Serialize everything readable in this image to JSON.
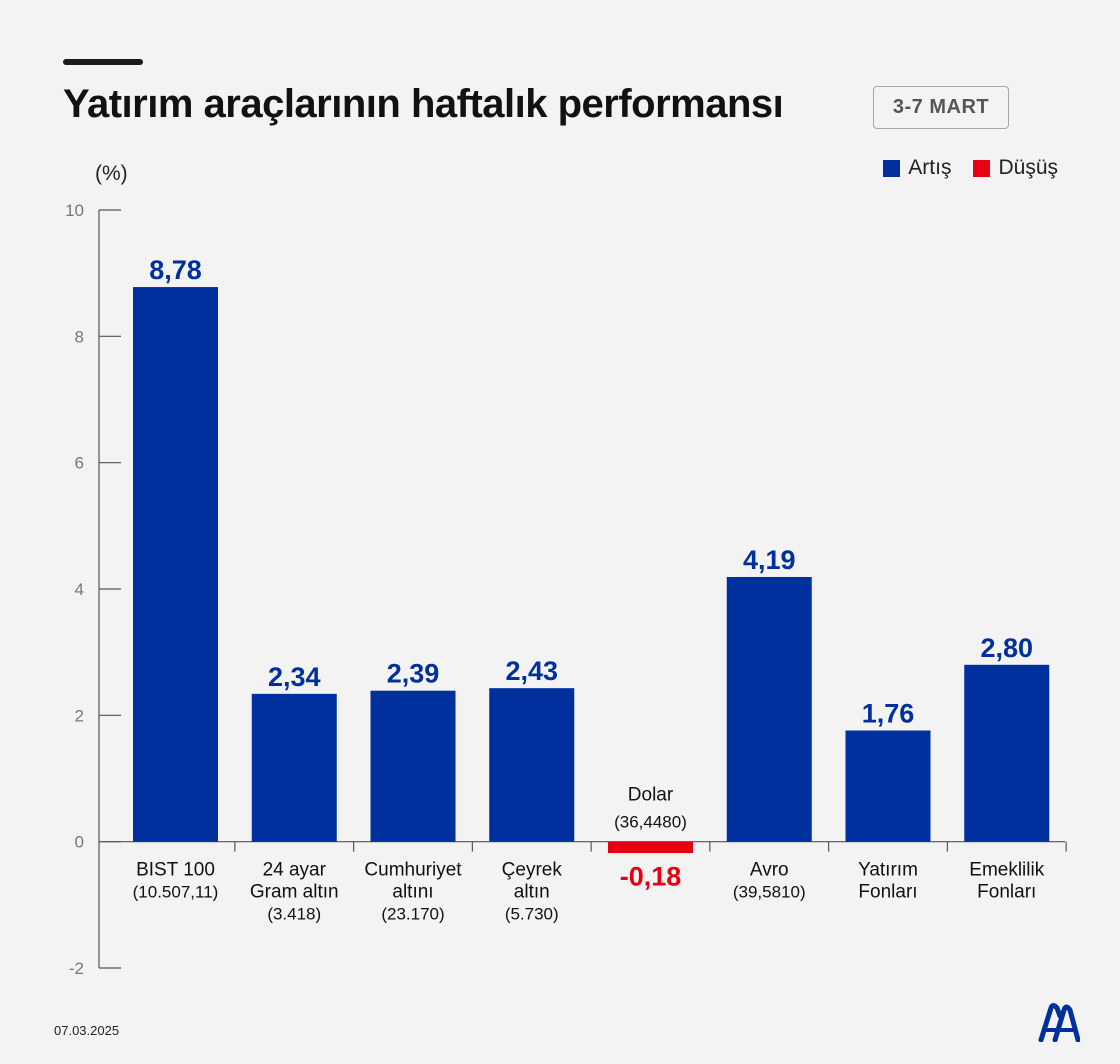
{
  "header": {
    "title": "Yatırım araçlarının haftalık performansı",
    "date_range": "3-7 MART"
  },
  "legend": {
    "increase_label": "Artış",
    "decrease_label": "Düşüş"
  },
  "unit_label": "(%)",
  "footer": {
    "date": "07.03.2025"
  },
  "logo": {
    "text": "AA"
  },
  "colors": {
    "increase": "#002f9e",
    "decrease": "#e60012",
    "axis": "#555555"
  },
  "chart_data": {
    "type": "bar",
    "title": "Yatırım araçlarının haftalık performansı",
    "ylabel": "(%)",
    "xlabel": "",
    "ylim": [
      -2,
      10
    ],
    "yticks": [
      -2,
      0,
      2,
      4,
      6,
      8,
      10
    ],
    "grid": false,
    "legend": "top-right",
    "categories": [
      {
        "lines": [
          "BIST 100",
          "(10.507,11)"
        ]
      },
      {
        "lines": [
          "24 ayar",
          "Gram altın",
          "(3.418)"
        ]
      },
      {
        "lines": [
          "Cumhuriyet",
          "altını",
          "(23.170)"
        ]
      },
      {
        "lines": [
          "Çeyrek",
          "altın",
          "(5.730)"
        ]
      },
      {
        "lines": [
          "Dolar",
          "(36,4480)"
        ]
      },
      {
        "lines": [
          "Avro",
          "(39,5810)"
        ]
      },
      {
        "lines": [
          "Yatırım",
          "Fonları"
        ]
      },
      {
        "lines": [
          "Emeklilik",
          "Fonları"
        ]
      }
    ],
    "values": [
      8.78,
      2.34,
      2.39,
      2.43,
      -0.18,
      4.19,
      1.76,
      2.8
    ],
    "value_labels": [
      "8,78",
      "2,34",
      "2,39",
      "2,43",
      "-0,18",
      "4,19",
      "1,76",
      "2,80"
    ]
  }
}
